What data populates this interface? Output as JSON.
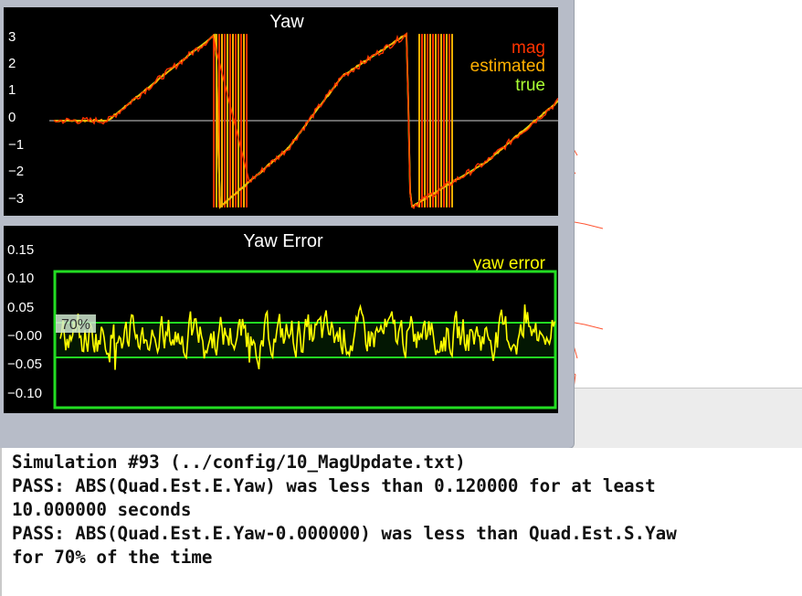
{
  "yaw_chart": {
    "title": "Yaw",
    "legend": [
      "mag",
      "estimated",
      "true"
    ],
    "colors": {
      "mag": "#ff3300",
      "estimated": "#ffb000",
      "true": "#aaff33",
      "axis": "#ffffff",
      "zero_line": "#8a8a8a"
    },
    "y_ticks": [
      "3",
      "2",
      "1",
      "0",
      "−1",
      "−2",
      "−3"
    ]
  },
  "yaw_error_chart": {
    "title": "Yaw Error",
    "legend": [
      "yaw error"
    ],
    "colors": {
      "series": "#ffff00",
      "box": "#22dd22",
      "band": "#22dd22",
      "axis": "#ffffff"
    },
    "y_ticks": [
      "0.15",
      "0.10",
      "0.05",
      "−0.00",
      "−0.05",
      "−0.10"
    ],
    "band_label": "70%"
  },
  "chart_data": [
    {
      "type": "line",
      "title": "Yaw",
      "series": [
        {
          "name": "mag"
        },
        {
          "name": "estimated"
        },
        {
          "name": "true"
        }
      ],
      "ylim": [
        -3.3,
        3.3
      ],
      "note_points": [
        [
          0,
          0.0
        ],
        [
          0.15,
          0.0
        ],
        [
          0.3,
          1.6
        ],
        [
          0.45,
          3.14
        ],
        [
          0.46,
          -3.14
        ],
        [
          0.65,
          -1.0
        ],
        [
          0.8,
          1.6
        ],
        [
          0.98,
          3.14
        ],
        [
          0.99,
          -3.14
        ],
        [
          1.2,
          -1.5
        ],
        [
          1.4,
          0.7
        ]
      ]
    },
    {
      "type": "line",
      "title": "Yaw Error",
      "series": [
        {
          "name": "yaw error"
        }
      ],
      "ylim": [
        -0.14,
        0.17
      ],
      "threshold_box": [
        -0.12,
        0.12
      ],
      "band": [
        -0.035,
        0.025
      ]
    }
  ],
  "console": {
    "lines": [
      "Simulation #93 (../config/10_MagUpdate.txt)",
      "PASS: ABS(Quad.Est.E.Yaw) was less than 0.120000 for at least",
      "10.000000 seconds",
      "PASS: ABS(Quad.Est.E.Yaw-0.000000) was less than Quad.Est.S.Yaw",
      "for 70% of the time"
    ]
  }
}
